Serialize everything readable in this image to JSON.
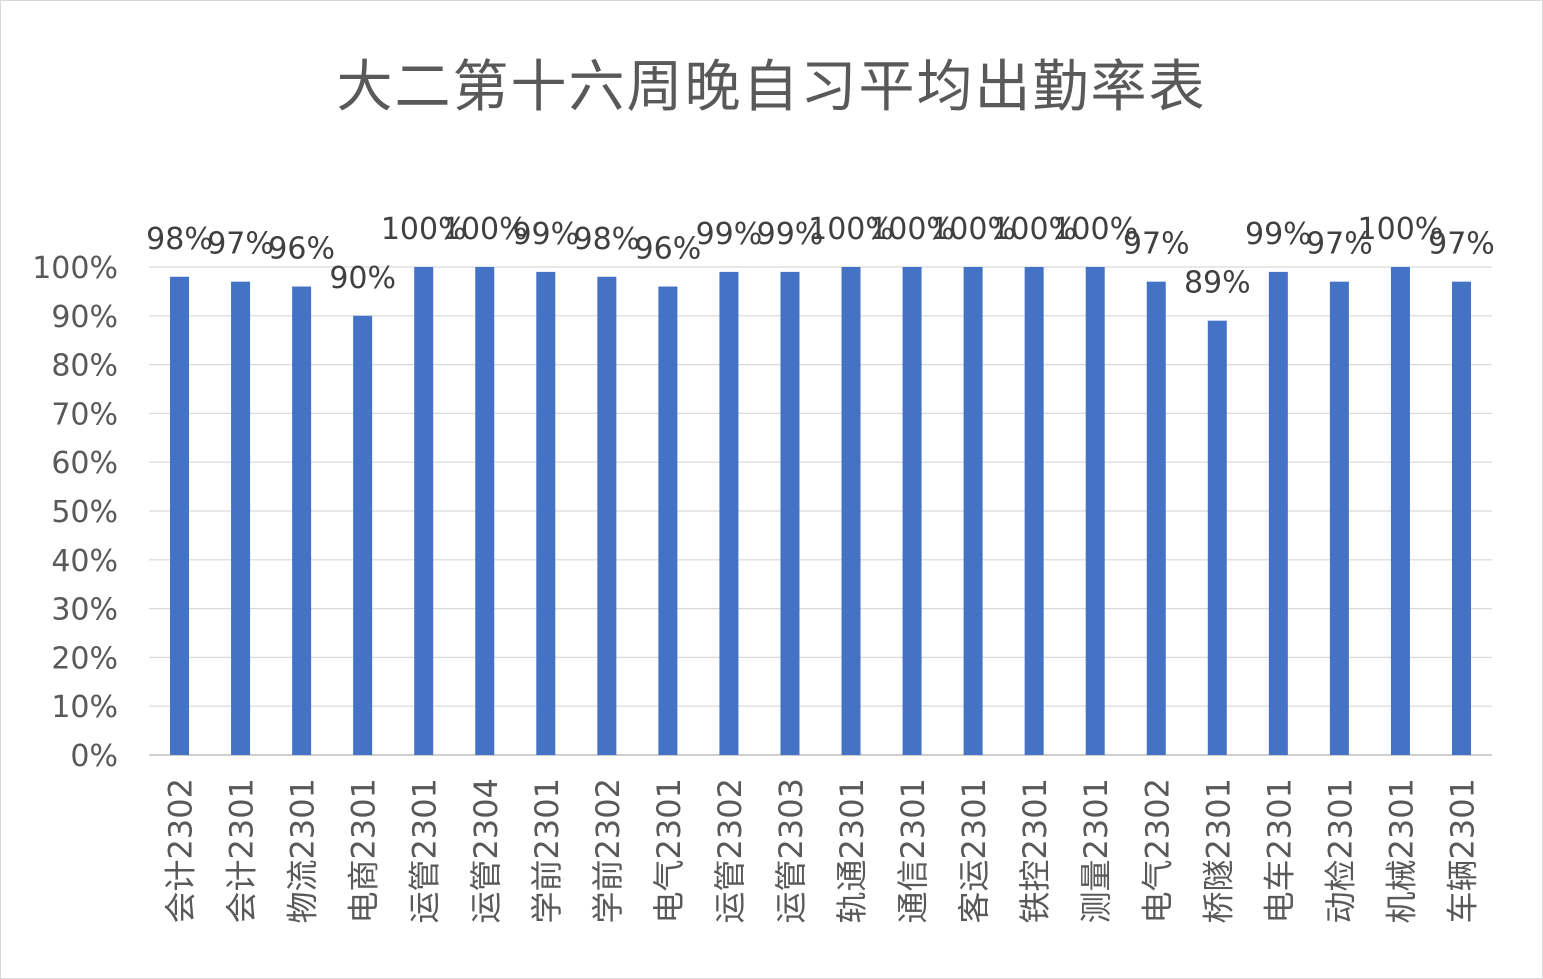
{
  "chart_data": {
    "type": "bar",
    "title": "大二第十六周晚自习平均出勤率表",
    "xlabel": "",
    "ylabel": "",
    "ylim": [
      0,
      100
    ],
    "yticks": [
      "0%",
      "10%",
      "20%",
      "30%",
      "40%",
      "50%",
      "60%",
      "70%",
      "80%",
      "90%",
      "100%"
    ],
    "grid": true,
    "legend": "none",
    "bar_color": "#4472C4",
    "categories": [
      "会计2302",
      "会计2301",
      "物流2301",
      "电商2301",
      "运管2301",
      "运管2304",
      "学前2301",
      "学前2302",
      "电气2301",
      "运管2302",
      "运管2303",
      "轨通2301",
      "通信2301",
      "客运2301",
      "铁控2301",
      "测量2301",
      "电气2302",
      "桥隧2301",
      "电车2301",
      "动检2301",
      "机械2301",
      "车辆2301"
    ],
    "values": [
      98,
      97,
      96,
      90,
      100,
      100,
      99,
      98,
      96,
      99,
      99,
      100,
      100,
      100,
      100,
      100,
      97,
      89,
      99,
      97,
      100,
      97
    ],
    "data_labels": [
      "98%",
      "97%",
      "96%",
      "90%",
      "100%",
      "100%",
      "99%",
      "98%",
      "96%",
      "99%",
      "99%",
      "100%",
      "100%",
      "100%",
      "100%",
      "100%",
      "97%",
      "89%",
      "99%",
      "97%",
      "100%",
      "97%"
    ]
  }
}
